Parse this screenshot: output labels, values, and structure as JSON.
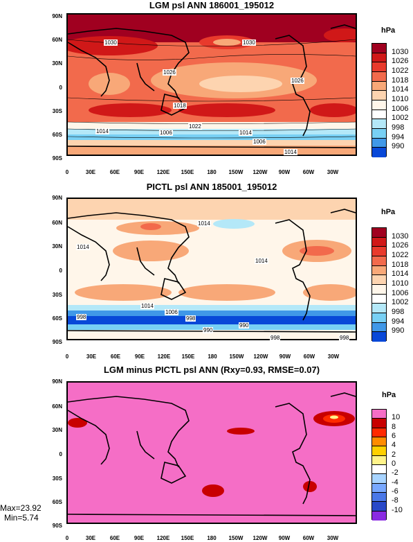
{
  "panels": [
    {
      "title": "LGM psl ANN 186001_195012",
      "unit": "hPa",
      "legend_labels": [
        "1030",
        "1026",
        "1022",
        "1018",
        "1014",
        "1010",
        "1006",
        "1002",
        "998",
        "994",
        "990"
      ],
      "legend_colors": [
        "#a00020",
        "#d01818",
        "#e83a2c",
        "#f26a4c",
        "#f8a878",
        "#fdd4b0",
        "#fff6ea",
        "#ffffff",
        "#b4e8f8",
        "#78d0f4",
        "#4098e8",
        "#0848d8"
      ],
      "contour_labels": [
        "1030",
        "1030",
        "1014",
        "1006",
        "1014",
        "1006",
        "1014",
        "1018",
        "1022",
        "1026",
        "1026"
      ]
    },
    {
      "title": "PICTL psl ANN 185001_195012",
      "unit": "hPa",
      "legend_labels": [
        "1030",
        "1026",
        "1022",
        "1018",
        "1014",
        "1010",
        "1006",
        "1002",
        "998",
        "994",
        "990"
      ],
      "legend_colors": [
        "#a00020",
        "#d01818",
        "#e83a2c",
        "#f26a4c",
        "#f8a878",
        "#fdd4b0",
        "#fff6ea",
        "#ffffff",
        "#b4e8f8",
        "#78d0f4",
        "#4098e8",
        "#0848d8"
      ],
      "contour_labels": [
        "1014",
        "1014",
        "1014",
        "1014",
        "1006",
        "998",
        "998",
        "990",
        "990",
        "998",
        "998"
      ]
    },
    {
      "title": "LGM minus PICTL psl ANN (Rxy=0.93, RMSE=0.07)",
      "unit": "hPa",
      "legend_labels": [
        "10",
        "8",
        "6",
        "4",
        "2",
        "0",
        "-2",
        "-4",
        "-6",
        "-8",
        "-10"
      ],
      "legend_colors": [
        "#f56ec6",
        "#c80000",
        "#ff2a00",
        "#ff8c00",
        "#ffd000",
        "#fff38a",
        "#ffffff",
        "#a8d4ff",
        "#78a8ff",
        "#4a78e8",
        "#2848c8",
        "#8a2be2"
      ],
      "max_text": "Max=23.92",
      "min_text": "Min=5.74"
    }
  ],
  "lat_ticks": [
    "90N",
    "60N",
    "30N",
    "0",
    "30S",
    "60S",
    "90S"
  ],
  "lon_ticks": [
    "0",
    "30E",
    "60E",
    "90E",
    "120E",
    "150E",
    "180",
    "150W",
    "120W",
    "90W",
    "60W",
    "30W"
  ]
}
